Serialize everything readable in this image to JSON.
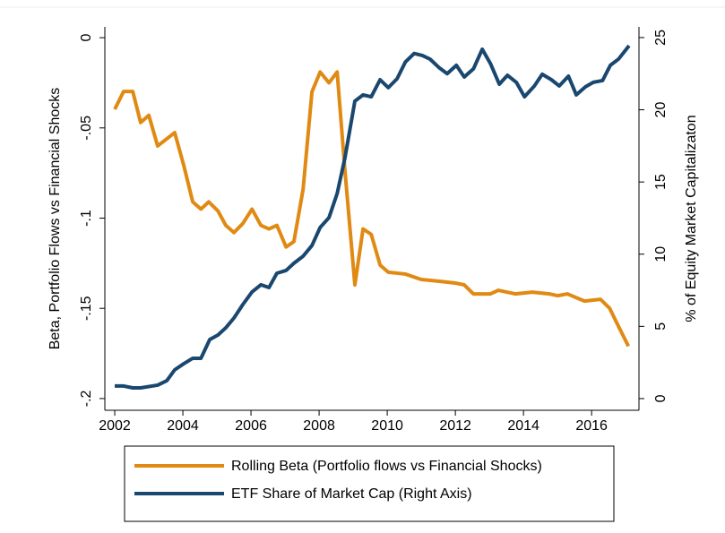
{
  "chart_data": {
    "type": "line",
    "y_label": "Beta, Portfolio Flows vs Financial Shocks",
    "y2_label": "% of Equity Market Capitalizaton",
    "xlim": [
      2001.71,
      2017.39
    ],
    "xticks": [
      2002,
      2004,
      2006,
      2008,
      2010,
      2012,
      2014,
      2016
    ],
    "ylim": [
      -0.2065,
      0.006
    ],
    "yticks": [
      {
        "value": 0,
        "label": "0"
      },
      {
        "value": -0.05,
        "label": "-.05"
      },
      {
        "value": -0.1,
        "label": "-.1"
      },
      {
        "value": -0.15,
        "label": "-.15"
      },
      {
        "value": -0.2,
        "label": "-.2"
      }
    ],
    "y2lim": [
      -0.81,
      25.74
    ],
    "y2ticks": [
      0,
      5,
      10,
      15,
      20,
      25
    ],
    "grid": false,
    "series": [
      {
        "name": "Rolling Beta (Portfolio flows vs Financial Shocks)",
        "color": "#e08a14",
        "x": [
          2002.0,
          2002.26,
          2002.53,
          2002.76,
          2003.0,
          2003.26,
          2003.76,
          2004.03,
          2004.29,
          2004.53,
          2004.76,
          2005.03,
          2005.26,
          2005.5,
          2005.76,
          2006.03,
          2006.29,
          2006.53,
          2006.76,
          2007.03,
          2007.26,
          2007.53,
          2007.79,
          2008.03,
          2008.29,
          2008.53,
          2008.76,
          2009.05,
          2009.29,
          2009.53,
          2009.79,
          2010.03,
          2010.53,
          2011.0,
          2011.53,
          2012.0,
          2012.26,
          2012.53,
          2013.03,
          2013.26,
          2013.76,
          2014.26,
          2014.76,
          2015.0,
          2015.29,
          2015.79,
          2016.26,
          2016.53,
          2016.79,
          2017.08
        ],
        "values": [
          -0.0397,
          -0.0298,
          -0.0298,
          -0.047,
          -0.043,
          -0.06,
          -0.0526,
          -0.071,
          -0.091,
          -0.095,
          -0.091,
          -0.096,
          -0.104,
          -0.108,
          -0.103,
          -0.095,
          -0.104,
          -0.106,
          -0.104,
          -0.116,
          -0.113,
          -0.084,
          -0.03,
          -0.019,
          -0.025,
          -0.019,
          -0.074,
          -0.137,
          -0.106,
          -0.109,
          -0.126,
          -0.13,
          -0.131,
          -0.134,
          -0.135,
          -0.136,
          -0.137,
          -0.142,
          -0.142,
          -0.14,
          -0.142,
          -0.141,
          -0.142,
          -0.143,
          -0.142,
          -0.146,
          -0.145,
          -0.15,
          -0.16,
          -0.171
        ]
      },
      {
        "name": "ETF Share of Market Cap (Right Axis)",
        "color": "#1a476f",
        "axis": "y2",
        "x": [
          2002.0,
          2002.26,
          2002.53,
          2002.76,
          2003.26,
          2003.53,
          2003.76,
          2004.03,
          2004.29,
          2004.53,
          2004.79,
          2005.03,
          2005.26,
          2005.5,
          2005.76,
          2006.03,
          2006.29,
          2006.53,
          2006.76,
          2007.03,
          2007.26,
          2007.53,
          2007.79,
          2008.03,
          2008.29,
          2008.53,
          2008.76,
          2009.05,
          2009.29,
          2009.53,
          2009.79,
          2010.03,
          2010.29,
          2010.53,
          2010.79,
          2011.03,
          2011.26,
          2011.53,
          2011.76,
          2012.03,
          2012.26,
          2012.53,
          2012.79,
          2013.03,
          2013.29,
          2013.53,
          2013.79,
          2014.03,
          2014.32,
          2014.55,
          2014.82,
          2015.05,
          2015.32,
          2015.55,
          2015.82,
          2016.05,
          2016.32,
          2016.55,
          2016.79,
          2017.1
        ],
        "values": [
          0.87,
          0.87,
          0.74,
          0.74,
          0.93,
          1.24,
          1.99,
          2.42,
          2.79,
          2.79,
          4.09,
          4.4,
          4.9,
          5.58,
          6.51,
          7.38,
          7.88,
          7.69,
          8.68,
          8.87,
          9.37,
          9.86,
          10.6,
          11.85,
          12.53,
          14.2,
          16.69,
          20.6,
          21.03,
          20.9,
          22.08,
          21.53,
          22.15,
          23.3,
          23.9,
          23.76,
          23.5,
          22.9,
          22.5,
          23.08,
          22.27,
          22.83,
          24.19,
          23.2,
          21.77,
          22.39,
          21.9,
          20.9,
          21.65,
          22.46,
          22.08,
          21.65,
          22.33,
          21.03,
          21.59,
          21.9,
          22.02,
          23.08,
          23.51,
          24.44
        ]
      }
    ]
  }
}
